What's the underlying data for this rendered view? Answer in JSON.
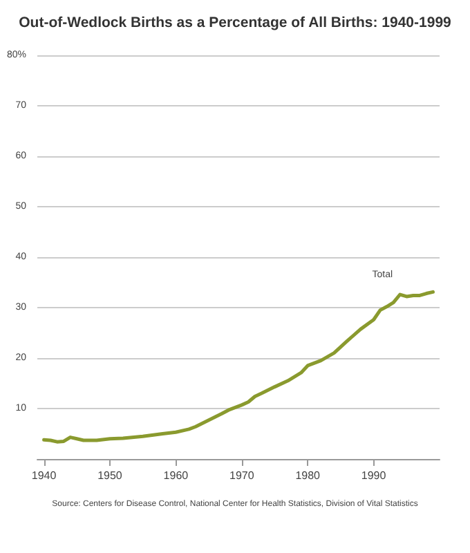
{
  "chart_data": {
    "type": "line",
    "title": "Out-of-Wedlock Births as a Percentage of All Births: 1940-1999",
    "x": [
      1940,
      1941,
      1942,
      1943,
      1944,
      1945,
      1946,
      1948,
      1950,
      1952,
      1955,
      1958,
      1960,
      1962,
      1963,
      1965,
      1967,
      1968,
      1970,
      1971,
      1972,
      1973,
      1975,
      1977,
      1979,
      1980,
      1982,
      1984,
      1986,
      1988,
      1990,
      1991,
      1992,
      1993,
      1994,
      1995,
      1996,
      1997,
      1998,
      1999
    ],
    "series": [
      {
        "name": "Total",
        "color": "#8a9a2e",
        "values": [
          3.8,
          3.7,
          3.4,
          3.5,
          4.3,
          4.0,
          3.7,
          3.7,
          4.0,
          4.1,
          4.5,
          5.0,
          5.3,
          5.9,
          6.4,
          7.7,
          9.0,
          9.7,
          10.7,
          11.3,
          12.4,
          13.0,
          14.3,
          15.5,
          17.1,
          18.5,
          19.5,
          21.0,
          23.4,
          25.7,
          27.6,
          29.5,
          30.2,
          31.0,
          32.6,
          32.2,
          32.4,
          32.4,
          32.8,
          33.1
        ]
      }
    ],
    "xlim": [
      1939,
      2000
    ],
    "xticks": [
      1940,
      1950,
      1960,
      1970,
      1980,
      1990
    ],
    "ylim": [
      0,
      80
    ],
    "yticks": [
      {
        "value": 0,
        "label": null
      },
      10,
      20,
      30,
      40,
      50,
      60,
      70,
      {
        "value": 80,
        "label": "80%"
      }
    ],
    "grid": "y",
    "marker": "none",
    "line_style": "solid",
    "annotations": [
      "Source: Centers for Disease Control, National Center for Health Statistics, Division of Vital Statistics"
    ]
  }
}
